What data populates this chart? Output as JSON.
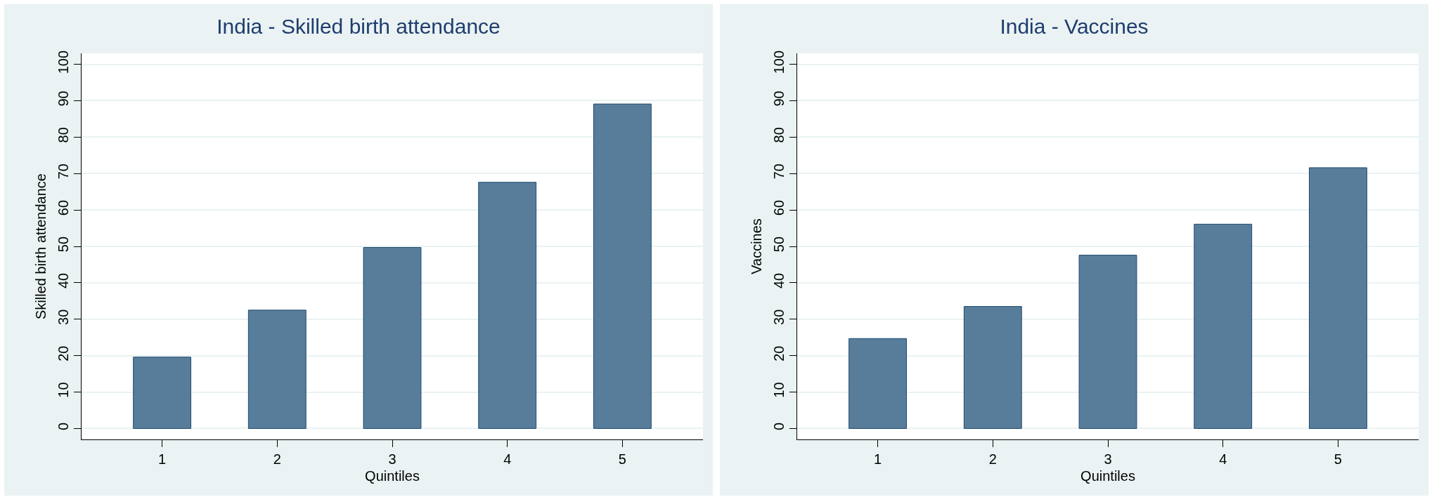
{
  "chart_data": [
    {
      "type": "bar",
      "title": "India - Skilled birth attendance",
      "xlabel": "Quintiles",
      "ylabel": "Skilled birth attendance",
      "categories": [
        "1",
        "2",
        "3",
        "4",
        "5"
      ],
      "values": [
        19.6,
        32.5,
        49.7,
        67.6,
        89.1
      ],
      "color": "#587d9a",
      "ylim": [
        -3,
        103
      ],
      "yticks": [
        0,
        10,
        20,
        30,
        40,
        50,
        60,
        70,
        80,
        90,
        100
      ],
      "grid": "y"
    },
    {
      "type": "bar",
      "title": "India - Vaccines",
      "xlabel": "Quintiles",
      "ylabel": "Vaccines",
      "categories": [
        "1",
        "2",
        "3",
        "4",
        "5"
      ],
      "values": [
        24.7,
        33.5,
        47.6,
        56.1,
        71.6
      ],
      "color": "#587d9a",
      "ylim": [
        -3,
        103
      ],
      "yticks": [
        0,
        10,
        20,
        30,
        40,
        50,
        60,
        70,
        80,
        90,
        100
      ],
      "grid": "y"
    }
  ]
}
